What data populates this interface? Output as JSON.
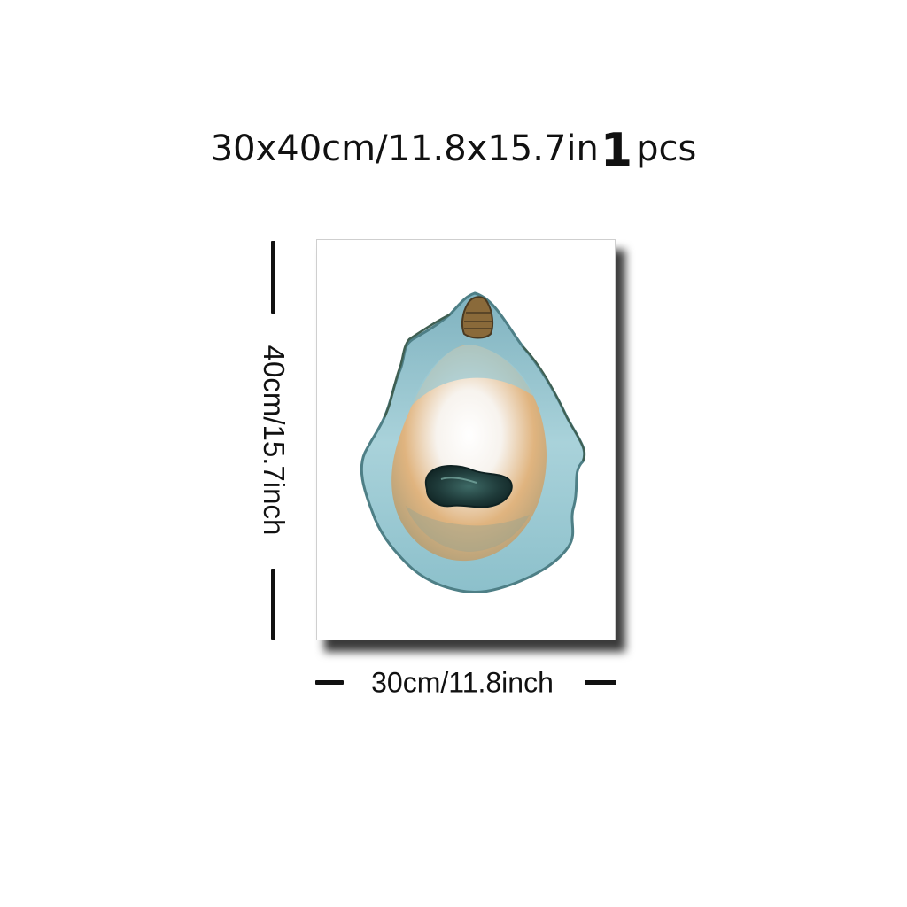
{
  "headline": {
    "size_text": "30x40cm/11.8x15.7in",
    "quantity": "1",
    "unit": "pcs"
  },
  "dimensions": {
    "height_label": "40cm/15.7inch",
    "width_label": "30cm/11.8inch"
  },
  "artwork": {
    "subject": "watercolor oyster shell",
    "colors": {
      "shell_blue": "#8fc3cf",
      "shell_edge": "#4e7f86",
      "inner_ochre": "#d9a66b",
      "meat_dark": "#1f3b3a",
      "hinge_brown": "#8a6a3a"
    }
  }
}
